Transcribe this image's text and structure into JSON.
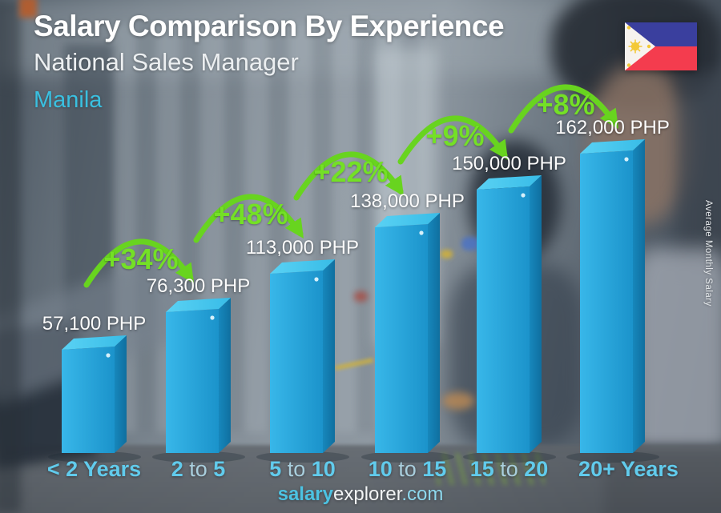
{
  "header": {
    "title": "Salary Comparison By Experience",
    "subtitle": "National Sales Manager",
    "city": "Manila"
  },
  "flag": {
    "country": "Philippines"
  },
  "side_label": "Average Monthly Salary",
  "footer": {
    "brand_bold": "salary",
    "brand_regular": "explorer",
    "tld": ".com"
  },
  "chart_data": {
    "type": "bar",
    "title": "Salary Comparison By Experience",
    "subtitle": "National Sales Manager",
    "location": "Manila",
    "currency": "PHP",
    "ylabel": "Average Monthly Salary",
    "categories": [
      "< 2 Years",
      "2 to 5",
      "5 to 10",
      "10 to 15",
      "15 to 20",
      "20+ Years"
    ],
    "values": [
      57100,
      76300,
      113000,
      138000,
      150000,
      162000
    ],
    "value_labels": [
      "57,100 PHP",
      "76,300 PHP",
      "113,000 PHP",
      "138,000 PHP",
      "150,000 PHP",
      "162,000 PHP"
    ],
    "pct_increase_labels": [
      "+34%",
      "+48%",
      "+22%",
      "+9%",
      "+8%"
    ],
    "grid": false,
    "colors": {
      "bar_front": "#21a3da",
      "bar_top": "#55d0f3",
      "bar_side": "#1480b4",
      "arrow_green": "#68d41f",
      "pct_green": "#74e026",
      "value_label": "#fbfbfb",
      "category": "#61cbec",
      "category_to": "#a9cedd",
      "city_accent": "#3ac0e0"
    }
  }
}
